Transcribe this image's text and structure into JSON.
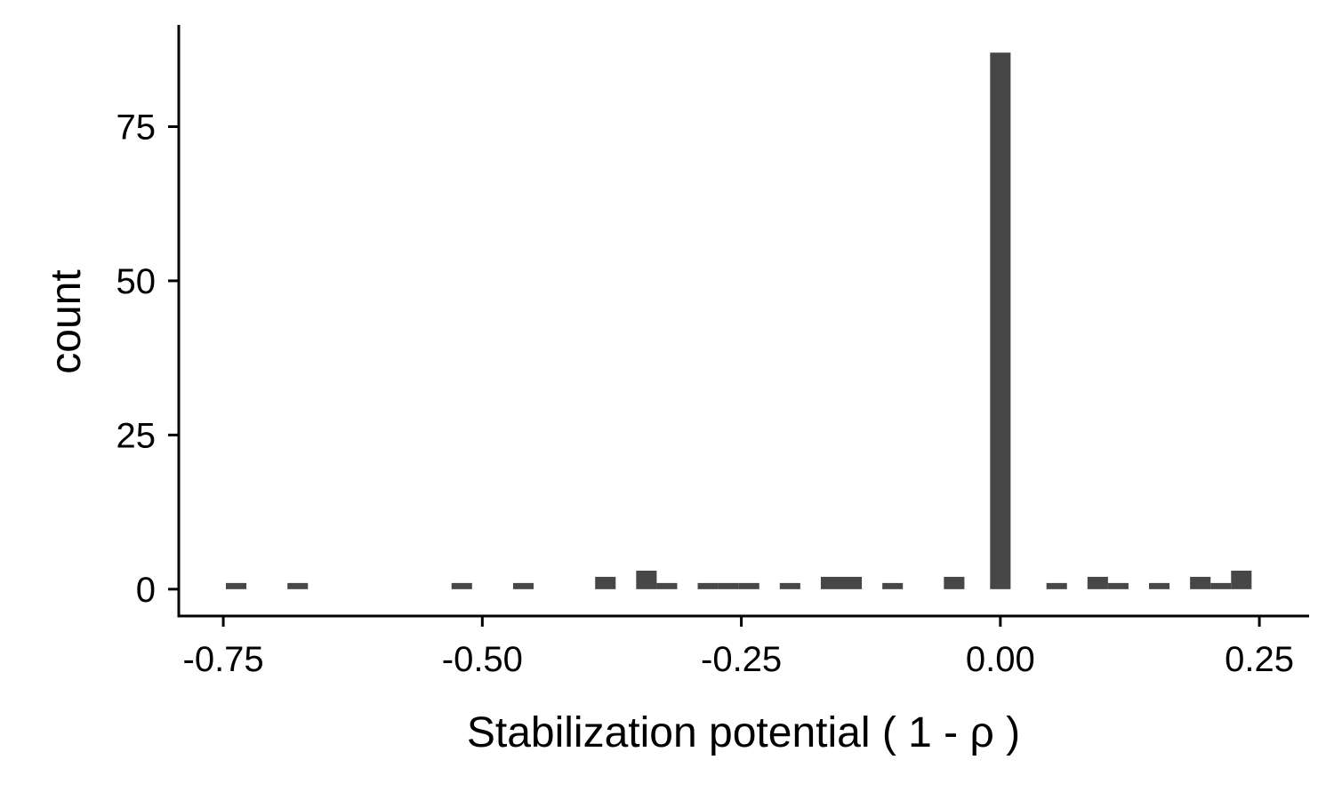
{
  "chart_data": {
    "type": "bar",
    "xlabel": "Stabilization potential ( 1 - ρ )",
    "ylabel": "count",
    "xlim": [
      -0.793,
      0.298
    ],
    "ylim": [
      -4.35,
      91.5
    ],
    "xticks": [
      {
        "value": -0.75,
        "label": "-0.75"
      },
      {
        "value": -0.5,
        "label": "-0.50"
      },
      {
        "value": -0.25,
        "label": "-0.25"
      },
      {
        "value": 0.0,
        "label": "0.00"
      },
      {
        "value": 0.25,
        "label": "0.25"
      }
    ],
    "yticks": [
      {
        "value": 0,
        "label": "0"
      },
      {
        "value": 25,
        "label": "25"
      },
      {
        "value": 50,
        "label": "50"
      },
      {
        "value": 75,
        "label": "75"
      }
    ],
    "bin_width": 0.0198,
    "bins": [
      {
        "x": -0.7376,
        "count": 1
      },
      {
        "x": -0.6782,
        "count": 1
      },
      {
        "x": -0.5198,
        "count": 1
      },
      {
        "x": -0.4604,
        "count": 1
      },
      {
        "x": -0.3812,
        "count": 2
      },
      {
        "x": -0.3416,
        "count": 3
      },
      {
        "x": -0.3218,
        "count": 1
      },
      {
        "x": -0.2822,
        "count": 1
      },
      {
        "x": -0.2624,
        "count": 1
      },
      {
        "x": -0.2426,
        "count": 1
      },
      {
        "x": -0.203,
        "count": 1
      },
      {
        "x": -0.1634,
        "count": 2
      },
      {
        "x": -0.1436,
        "count": 2
      },
      {
        "x": -0.104,
        "count": 1
      },
      {
        "x": -0.0446,
        "count": 2
      },
      {
        "x": 0.0,
        "count": 87
      },
      {
        "x": 0.0544,
        "count": 1
      },
      {
        "x": 0.094,
        "count": 2
      },
      {
        "x": 0.1138,
        "count": 1
      },
      {
        "x": 0.1534,
        "count": 1
      },
      {
        "x": 0.193,
        "count": 2
      },
      {
        "x": 0.2128,
        "count": 1
      },
      {
        "x": 0.2326,
        "count": 3
      }
    ],
    "bar_color": "#474747",
    "grid": false,
    "legend": "none"
  }
}
